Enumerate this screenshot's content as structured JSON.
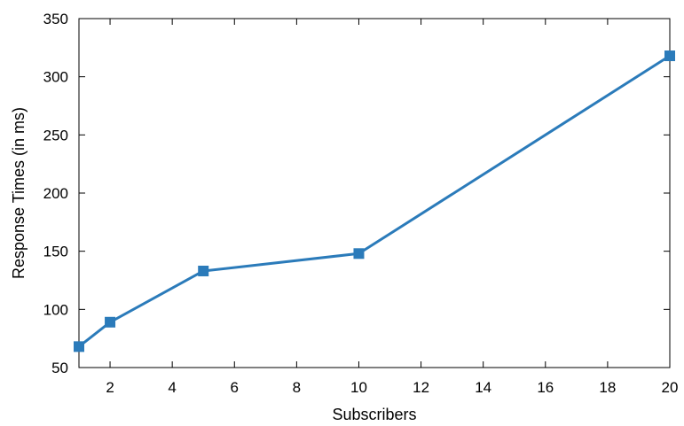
{
  "chart_data": {
    "type": "line",
    "title": "",
    "xlabel": "Subscribers",
    "ylabel": "Response Times (in ms)",
    "xlim": [
      1,
      20
    ],
    "ylim": [
      50,
      350
    ],
    "x_ticks": [
      2,
      4,
      6,
      8,
      10,
      12,
      14,
      16,
      18,
      20
    ],
    "y_ticks": [
      50,
      100,
      150,
      200,
      250,
      300,
      350
    ],
    "grid": false,
    "legend": "none",
    "series": [
      {
        "color": "#2b7bba",
        "marker": "square",
        "points": [
          {
            "x": 1,
            "y": 68
          },
          {
            "x": 2,
            "y": 89
          },
          {
            "x": 5,
            "y": 133
          },
          {
            "x": 10,
            "y": 148
          },
          {
            "x": 20,
            "y": 318
          }
        ]
      }
    ]
  }
}
